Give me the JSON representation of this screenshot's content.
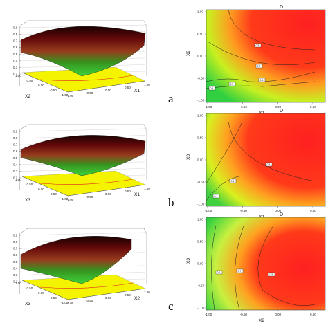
{
  "figure": {
    "panel_labels": [
      "a",
      "b",
      "c"
    ]
  },
  "colors": {
    "surface_top": "#2a0000",
    "surface_mid": "#b01010",
    "surface_low": "#2fd02f",
    "floor": "#f4f400",
    "contour_hot": "#ff1a1a",
    "contour_warm": "#ffb020",
    "contour_cool": "#40e040"
  },
  "chart_data": [
    {
      "type": "surface",
      "panel": "a",
      "title": "",
      "xlabel": "X1",
      "ylabel": "X2",
      "zticks": [
        "0.9",
        "0.8",
        "0.7",
        "0.6",
        "0.5",
        "0.4",
        "0.3",
        "0.2"
      ],
      "xticks": [
        "-1.00",
        "-0.50",
        "0.00",
        "0.50",
        "1.00"
      ],
      "yticks": [
        "1.00",
        "0.50",
        "0.00",
        "-0.50",
        "-1.00"
      ],
      "zlim": [
        0.2,
        0.9
      ]
    },
    {
      "type": "contour",
      "panel": "a",
      "title": "D",
      "xlabel": "X1",
      "ylabel": "X2",
      "xticks": [
        "-1.00",
        "-0.50",
        "0.00",
        "0.50"
      ],
      "yticks": [
        "1.00",
        "0.50",
        "0.00",
        "-0.50",
        "-1.00"
      ],
      "contour_labels": [
        "0.8",
        "0.7",
        "0.6",
        "0.5",
        "0.4"
      ]
    },
    {
      "type": "surface",
      "panel": "b",
      "title": "",
      "xlabel": "X1",
      "ylabel": "X3",
      "zticks": [
        "0.9",
        "0.8",
        "0.7",
        "0.6",
        "0.5",
        "0.4",
        "0.3",
        "0.2"
      ],
      "xticks": [
        "-1.00",
        "-0.50",
        "0.00",
        "0.50",
        "1.00"
      ],
      "yticks": [
        "1.00",
        "0.50",
        "0.00",
        "-0.50",
        "-1.00"
      ],
      "zlim": [
        0.2,
        0.9
      ]
    },
    {
      "type": "contour",
      "panel": "b",
      "title": "D",
      "xlabel": "X1",
      "ylabel": "X3",
      "xticks": [
        "-1.00",
        "-0.50",
        "0.00",
        "0.50"
      ],
      "yticks": [
        "1.00",
        "0.50",
        "0.00",
        "-0.50",
        "-1.00"
      ],
      "contour_labels": [
        "0.8",
        "0.6",
        "0.4"
      ]
    },
    {
      "type": "surface",
      "panel": "c",
      "title": "",
      "xlabel": "X2",
      "ylabel": "X3",
      "zticks": [
        "0.9",
        "0.8",
        "0.7",
        "0.6",
        "0.5",
        "0.4",
        "0.3",
        "0.2"
      ],
      "xticks": [
        "-1.00",
        "-0.50",
        "0.00",
        "0.50",
        "1.00"
      ],
      "yticks": [
        "1.00",
        "0.50",
        "0.00",
        "-0.50",
        "-1.00"
      ],
      "zlim": [
        0.2,
        0.9
      ]
    },
    {
      "type": "contour",
      "panel": "c",
      "title": "D",
      "xlabel": "X2",
      "ylabel": "X3",
      "xticks": [
        "-1.00",
        "-0.50",
        "0.00",
        "0.50"
      ],
      "yticks": [
        "1.00",
        "0.50",
        "0.00",
        "-0.50",
        "-1.00"
      ],
      "contour_labels": [
        "0.6",
        "0.7",
        "0.8"
      ]
    }
  ]
}
